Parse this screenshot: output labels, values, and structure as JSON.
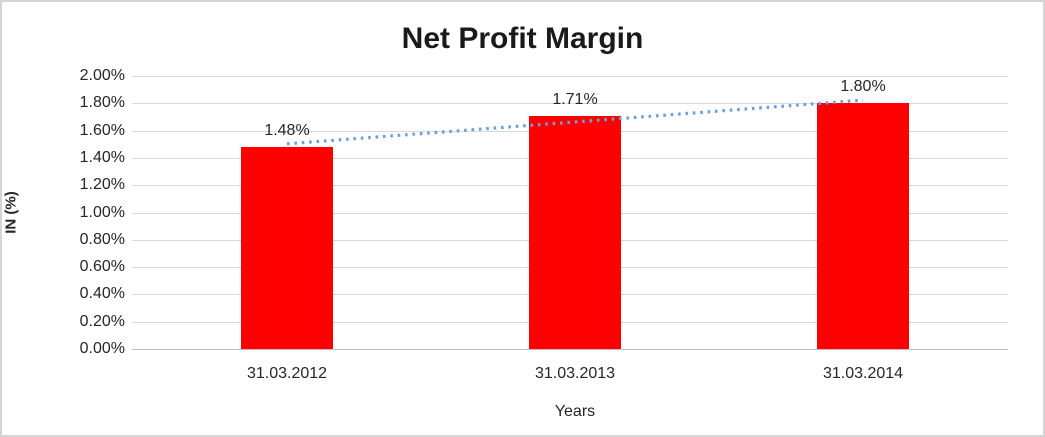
{
  "chart_data": {
    "type": "bar",
    "title": "Net Profit Margin",
    "xlabel": "Years",
    "ylabel": "IN (%)",
    "categories": [
      "31.03.2012",
      "31.03.2013",
      "31.03.2014"
    ],
    "values": [
      1.48,
      1.71,
      1.8
    ],
    "data_labels": [
      "1.48%",
      "1.71%",
      "1.80%"
    ],
    "ylim": [
      0,
      2.0
    ],
    "ytick_step": 0.2,
    "ytick_labels": [
      "0.00%",
      "0.20%",
      "0.40%",
      "0.60%",
      "0.80%",
      "1.00%",
      "1.20%",
      "1.40%",
      "1.60%",
      "1.80%",
      "2.00%"
    ],
    "grid": true,
    "legend_position": "none",
    "bar_color": "#FF0000",
    "trendline": {
      "type": "linear",
      "style": "dotted",
      "color": "#6CA0DC"
    },
    "gridline_color": "#D9D9D9",
    "axis_line_color": "#BFBFBF",
    "text_color": "#262626"
  }
}
